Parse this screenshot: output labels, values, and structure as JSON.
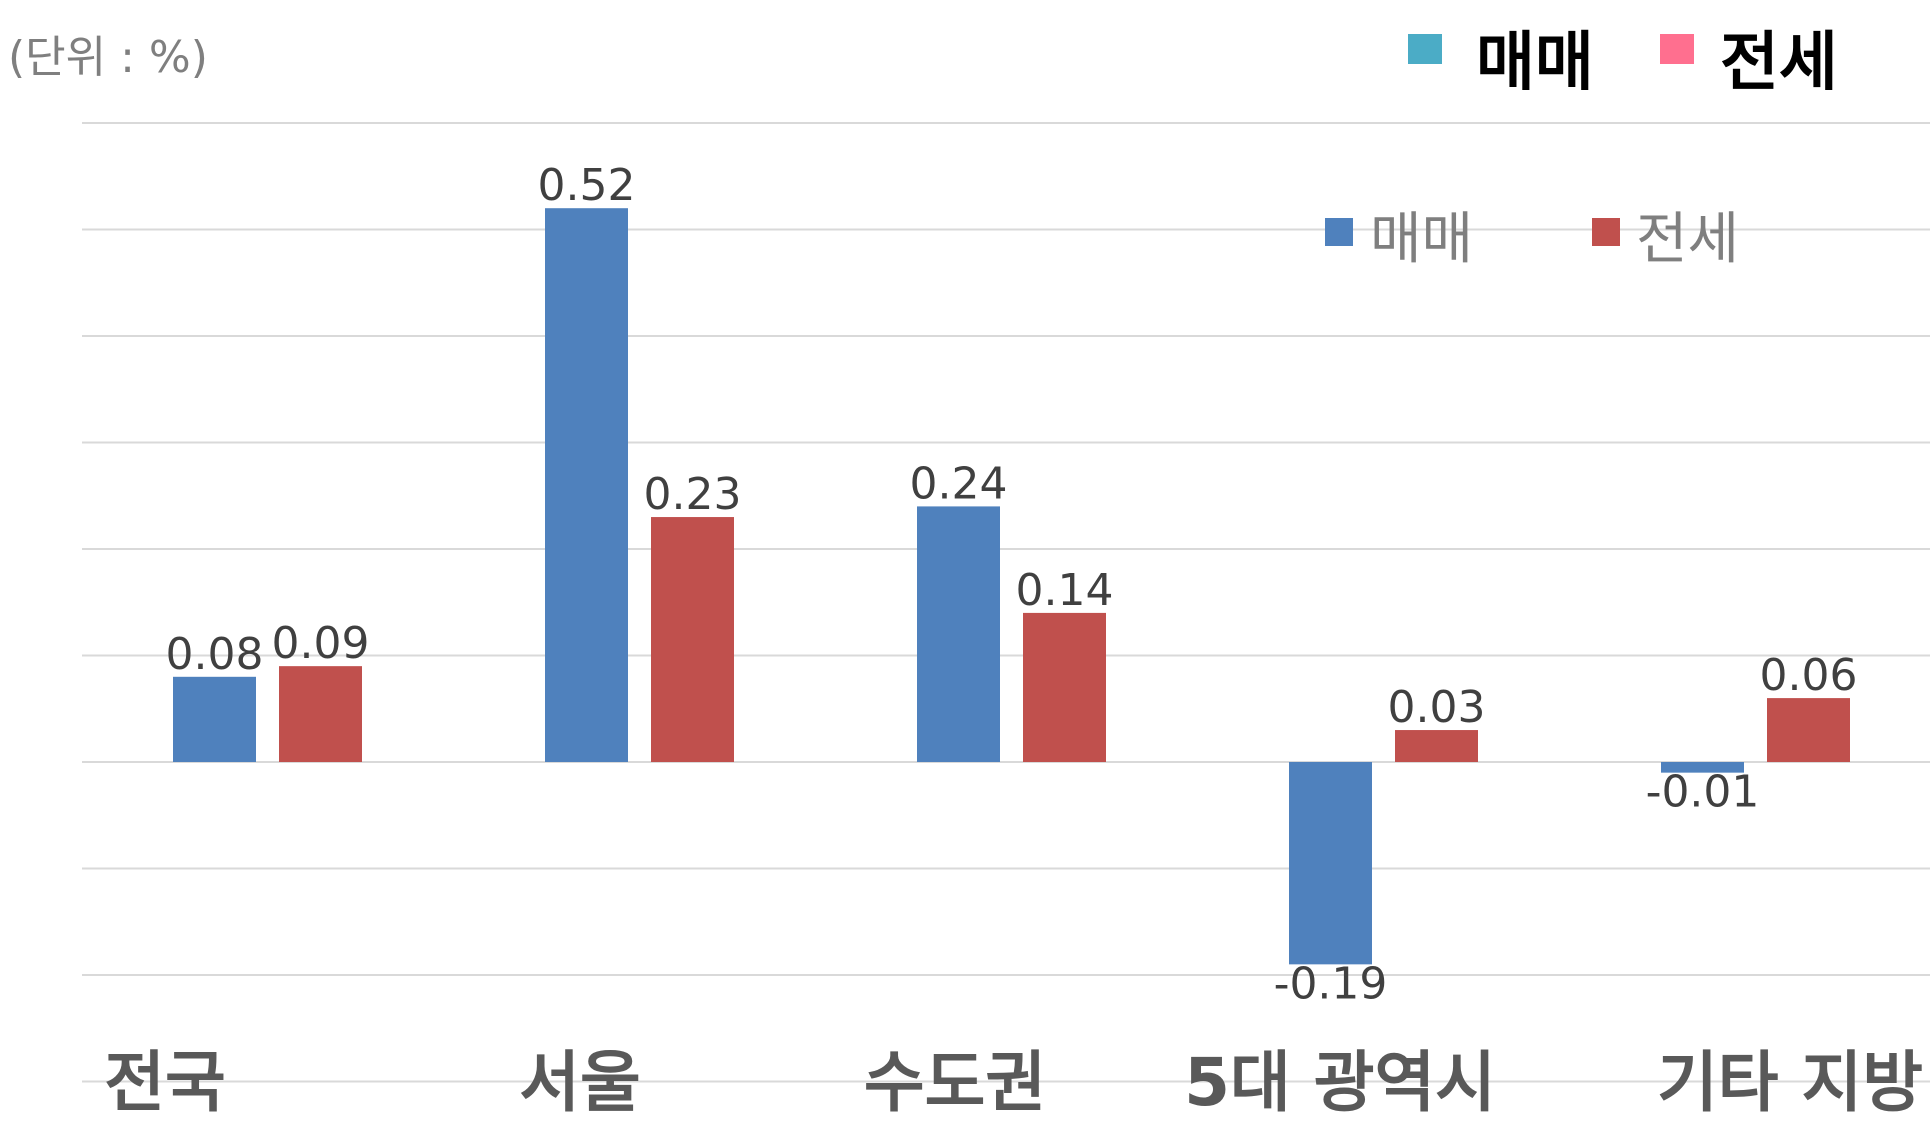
{
  "chart_data": {
    "type": "bar",
    "unit_label": "(단위 : %)",
    "categories": [
      "전국",
      "서울",
      "수도권",
      "5대 광역시",
      "기타 지방"
    ],
    "series": [
      {
        "name": "매매",
        "color": "#4f81bd",
        "values": [
          0.08,
          0.52,
          0.24,
          -0.19,
          -0.01
        ]
      },
      {
        "name": "전세",
        "color": "#c0504d",
        "values": [
          0.09,
          0.23,
          0.14,
          0.03,
          0.06
        ]
      }
    ],
    "value_labels": {
      "매매": [
        "0.08",
        "0.52",
        "0.24",
        "-0.19",
        "-0.01"
      ],
      "전세": [
        "0.09",
        "0.23",
        "0.14",
        "0.03",
        "0.06"
      ]
    },
    "top_legend": [
      {
        "name": "매매",
        "color": "#4bacc6"
      },
      {
        "name": "전세",
        "color": "#ff6f8f"
      }
    ],
    "ylim": [
      -0.3,
      0.6
    ],
    "grid": true,
    "legend_position": "top-right"
  }
}
